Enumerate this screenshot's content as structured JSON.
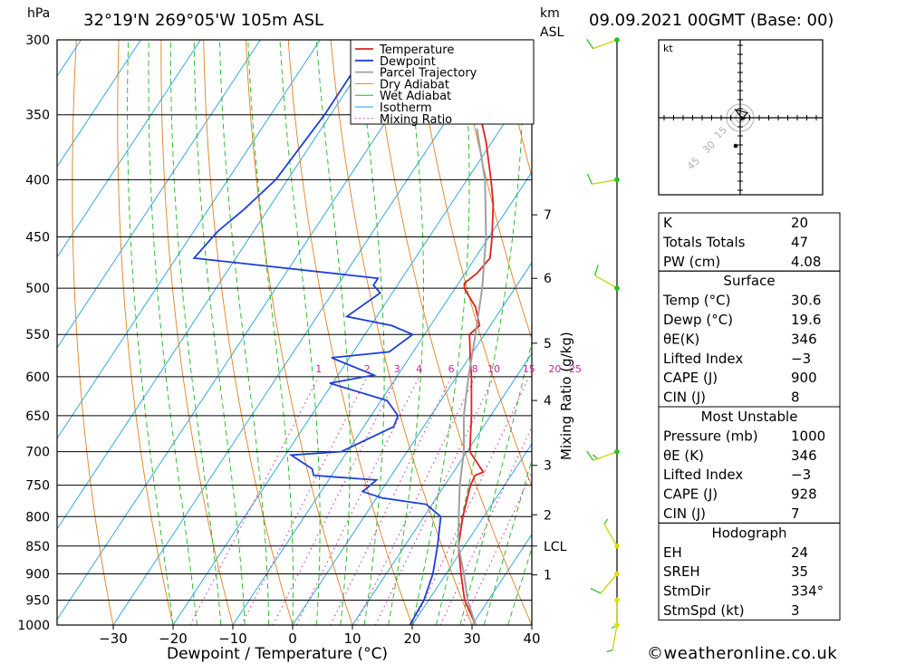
{
  "header": {
    "hpa_unit": "hPa",
    "location": "32°19'N  269°05'W  105m  ASL",
    "km_unit": "km",
    "asl_unit": "ASL",
    "datetime": "09.09.2021  00GMT  (Base: 00)"
  },
  "colors": {
    "temperature": "#e02020",
    "dewpoint": "#1c3fdc",
    "parcel": "#a0a0a0",
    "dry_adiabat": "#e08020",
    "wet_adiabat": "#18b818",
    "isotherm": "#20a0e0",
    "mixing_ratio": "#d020a0"
  },
  "chart_data": {
    "type": "line",
    "title": "Skew-T log-P diagram",
    "xlabel": "Dewpoint / Temperature (°C)",
    "ylabel": "hPa",
    "right_label": "Mixing Ratio (g/kg)",
    "xlim": [
      -40,
      40
    ],
    "ylim": [
      1000,
      300
    ],
    "x_ticks": [
      -30,
      -20,
      -10,
      0,
      10,
      20,
      30,
      40
    ],
    "x_tick_labels": [
      "−30",
      "−20",
      "−10",
      "0",
      "10",
      "20",
      "30",
      "40"
    ],
    "pressure_levels": [
      300,
      350,
      400,
      450,
      500,
      550,
      600,
      650,
      700,
      750,
      800,
      850,
      900,
      950,
      1000
    ],
    "height_ticks": [
      {
        "label": "7",
        "p": 430
      },
      {
        "label": "6",
        "p": 490
      },
      {
        "label": "5",
        "p": 560
      },
      {
        "label": "4",
        "p": 630
      },
      {
        "label": "3",
        "p": 720
      },
      {
        "label": "2",
        "p": 797
      },
      {
        "label": "LCL",
        "p": 850
      },
      {
        "label": "1",
        "p": 902
      }
    ],
    "mixing_ratio_labels": [
      "1",
      "2",
      "3",
      "4",
      "6",
      "8",
      "10",
      "15",
      "20",
      "25"
    ],
    "mixing_ratio_values": [
      1,
      2,
      3,
      4,
      6,
      8,
      10,
      15,
      20,
      25
    ],
    "legend": {
      "placement": "top-right",
      "entries": [
        "Temperature",
        "Dewpoint",
        "Parcel Trajectory",
        "Dry Adiabat",
        "Wet Adiabat",
        "Isotherm",
        "Mixing Ratio"
      ]
    },
    "series": [
      {
        "name": "Temperature",
        "points": [
          [
            1000,
            30.6
          ],
          [
            950,
            26
          ],
          [
            900,
            22.5
          ],
          [
            850,
            19
          ],
          [
            800,
            16.5
          ],
          [
            750,
            14.3
          ],
          [
            735,
            14
          ],
          [
            730,
            15
          ],
          [
            700,
            10.5
          ],
          [
            650,
            6.8
          ],
          [
            600,
            2.5
          ],
          [
            580,
            0.5
          ],
          [
            550,
            -2.5
          ],
          [
            540,
            -1.8
          ],
          [
            520,
            -4.5
          ],
          [
            500,
            -8.5
          ],
          [
            495,
            -9
          ],
          [
            485,
            -8
          ],
          [
            470,
            -7.5
          ],
          [
            450,
            -9.5
          ],
          [
            420,
            -13
          ],
          [
            400,
            -16
          ],
          [
            370,
            -21
          ],
          [
            350,
            -25
          ],
          [
            320,
            -30.5
          ],
          [
            300,
            -35
          ]
        ]
      },
      {
        "name": "Dewpoint",
        "points": [
          [
            1000,
            19.6
          ],
          [
            950,
            19.2
          ],
          [
            900,
            17.8
          ],
          [
            850,
            15.5
          ],
          [
            800,
            12.8
          ],
          [
            780,
            9
          ],
          [
            770,
            1
          ],
          [
            760,
            -3
          ],
          [
            742,
            -2
          ],
          [
            735,
            -13
          ],
          [
            725,
            -14
          ],
          [
            705,
            -19
          ],
          [
            700,
            -11
          ],
          [
            665,
            -5
          ],
          [
            650,
            -5.5
          ],
          [
            630,
            -9
          ],
          [
            608,
            -20.5
          ],
          [
            598,
            -14
          ],
          [
            577,
            -23
          ],
          [
            570,
            -14
          ],
          [
            550,
            -12
          ],
          [
            540,
            -16.5
          ],
          [
            530,
            -25
          ],
          [
            505,
            -22
          ],
          [
            497,
            -24
          ],
          [
            490,
            -24
          ],
          [
            470,
            -57
          ],
          [
            445,
            -56
          ],
          [
            425,
            -54
          ],
          [
            400,
            -52
          ],
          [
            350,
            -51
          ],
          [
            300,
            -51
          ]
        ]
      },
      {
        "name": "Parcel Trajectory",
        "points": [
          [
            1000,
            30.6
          ],
          [
            950,
            26.5
          ],
          [
            900,
            23
          ],
          [
            850,
            19
          ],
          [
            800,
            15.8
          ],
          [
            750,
            12.5
          ],
          [
            700,
            9.5
          ],
          [
            650,
            5.5
          ],
          [
            600,
            2
          ],
          [
            550,
            -1.5
          ],
          [
            500,
            -5.5
          ],
          [
            450,
            -10.5
          ],
          [
            400,
            -17
          ],
          [
            360,
            -24
          ]
        ]
      }
    ]
  },
  "hodograph": {
    "unit": "kt",
    "rings": [
      "15",
      "30",
      "45"
    ],
    "hodo_points": [
      [
        0,
        0
      ],
      [
        2,
        -2
      ],
      [
        0,
        -4
      ],
      [
        -1,
        -7
      ],
      [
        -2,
        -10
      ],
      [
        3,
        -7
      ],
      [
        1,
        -2
      ],
      [
        0,
        0
      ]
    ]
  },
  "wind_barbs": {
    "levels": [
      {
        "p": 300,
        "dir": 250,
        "kt": 10
      },
      {
        "p": 400,
        "dir": 260,
        "kt": 10
      },
      {
        "p": 500,
        "dir": 300,
        "kt": 10
      },
      {
        "p": 700,
        "dir": 250,
        "kt": 15
      },
      {
        "p": 850,
        "dir": 330,
        "kt": 5
      },
      {
        "p": 900,
        "dir": 220,
        "kt": 10
      },
      {
        "p": 950,
        "dir": 180,
        "kt": 5
      },
      {
        "p": 1000,
        "dir": 190,
        "kt": 5
      }
    ]
  },
  "indices_table": {
    "top": [
      {
        "label": "K",
        "value": "20"
      },
      {
        "label": "Totals Totals",
        "value": "47"
      },
      {
        "label": "PW (cm)",
        "value": "4.08"
      }
    ],
    "surface": {
      "title": "Surface",
      "rows": [
        {
          "label": "Temp (°C)",
          "value": "30.6"
        },
        {
          "label": "Dewp (°C)",
          "value": "19.6"
        },
        {
          "label": "θE(K)",
          "value": "346"
        },
        {
          "label": "Lifted Index",
          "value": "−3"
        },
        {
          "label": "CAPE (J)",
          "value": "900"
        },
        {
          "label": "CIN (J)",
          "value": "8"
        }
      ]
    },
    "most_unstable": {
      "title": "Most Unstable",
      "rows": [
        {
          "label": "Pressure (mb)",
          "value": "1000"
        },
        {
          "label": "θE (K)",
          "value": "346"
        },
        {
          "label": "Lifted Index",
          "value": "−3"
        },
        {
          "label": "CAPE (J)",
          "value": "928"
        },
        {
          "label": "CIN (J)",
          "value": "7"
        }
      ]
    },
    "hodograph": {
      "title": "Hodograph",
      "rows": [
        {
          "label": "EH",
          "value": "24"
        },
        {
          "label": "SREH",
          "value": "35"
        },
        {
          "label": "StmDir",
          "value": "334°"
        },
        {
          "label": "StmSpd (kt)",
          "value": "3"
        }
      ]
    }
  },
  "footer": {
    "copyright": "©weatheronline.co.uk"
  }
}
